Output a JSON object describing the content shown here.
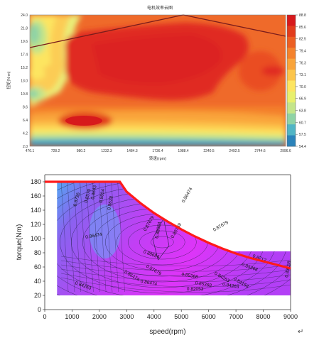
{
  "top_title": "电机效率云图",
  "bottom_return_mark": "↵",
  "chart_data": [
    {
      "type": "heatmap",
      "title": "电机效率云图",
      "xlabel": "转速(rpm)",
      "ylabel": "扭矩(N·m)",
      "x_ticks": [
        "476.1",
        "728.2",
        "980.2",
        "1232.3",
        "1484.3",
        "1736.4",
        "1988.4",
        "2240.5",
        "2492.5",
        "2744.6",
        "2996.6"
      ],
      "y_ticks": [
        "2.0",
        "4.2",
        "6.4",
        "8.6",
        "10.8",
        "13.0",
        "15.2",
        "17.4",
        "19.6",
        "21.8",
        "24.0"
      ],
      "xlim": [
        476.1,
        2996.6
      ],
      "ylim": [
        2.0,
        24.0
      ],
      "colorbar_ticks": [
        "88.8",
        "85.6",
        "82.5",
        "79.4",
        "76.3",
        "73.1",
        "70.0",
        "66.9",
        "63.8",
        "60.7",
        "57.5",
        "54.4"
      ],
      "colorbar_colors": [
        "#d7191c",
        "#e23c1d",
        "#ec5f23",
        "#f4822c",
        "#f9a43a",
        "#fcc54c",
        "#fde561",
        "#e8f06d",
        "#c4e58a",
        "#8fd3a5",
        "#51b5c5",
        "#2b83ba"
      ],
      "outline": {
        "x": [
          476.1,
          1988.4,
          2996.6
        ],
        "y": [
          18.6,
          24.0,
          20.8
        ],
        "color": "#7a1c1c"
      }
    },
    {
      "type": "contour",
      "xlabel": "speed(rpm)",
      "ylabel": "torque(Nm)",
      "x_ticks": [
        "0",
        "1000",
        "2000",
        "3000",
        "4000",
        "5000",
        "6000",
        "7000",
        "8000",
        "9000"
      ],
      "y_ticks": [
        "0",
        "20",
        "40",
        "60",
        "80",
        "100",
        "120",
        "140",
        "160",
        "180"
      ],
      "xlim": [
        0,
        9000
      ],
      "ylim": [
        0,
        190
      ],
      "peak_torque_curve": {
        "x": [
          0,
          2750,
          3000,
          3500,
          4000,
          4500,
          5000,
          5500,
          6000,
          6500,
          7000,
          7500,
          8000,
          8500,
          9000
        ],
        "y": [
          180,
          180,
          166,
          150,
          136,
          124,
          113,
          103,
          94,
          86,
          79,
          73,
          68,
          63,
          58
        ],
        "color": "#ff1a1a"
      },
      "contour_labels": [
        "0.8726",
        "0.8579",
        "0.8643",
        "0.8654",
        "0.8628",
        "0.86474",
        "0.87679",
        "0.88684",
        "0.88769",
        "0.88684",
        "0.87679",
        "0.86474",
        "0.85368",
        "0.84263",
        "0.84158",
        "0.86474",
        "0.85368",
        "0.84263",
        "0.82053",
        "0.85368",
        "0.86474",
        "0.83158",
        "0.87679",
        "0.8712",
        "0.84263"
      ]
    }
  ]
}
